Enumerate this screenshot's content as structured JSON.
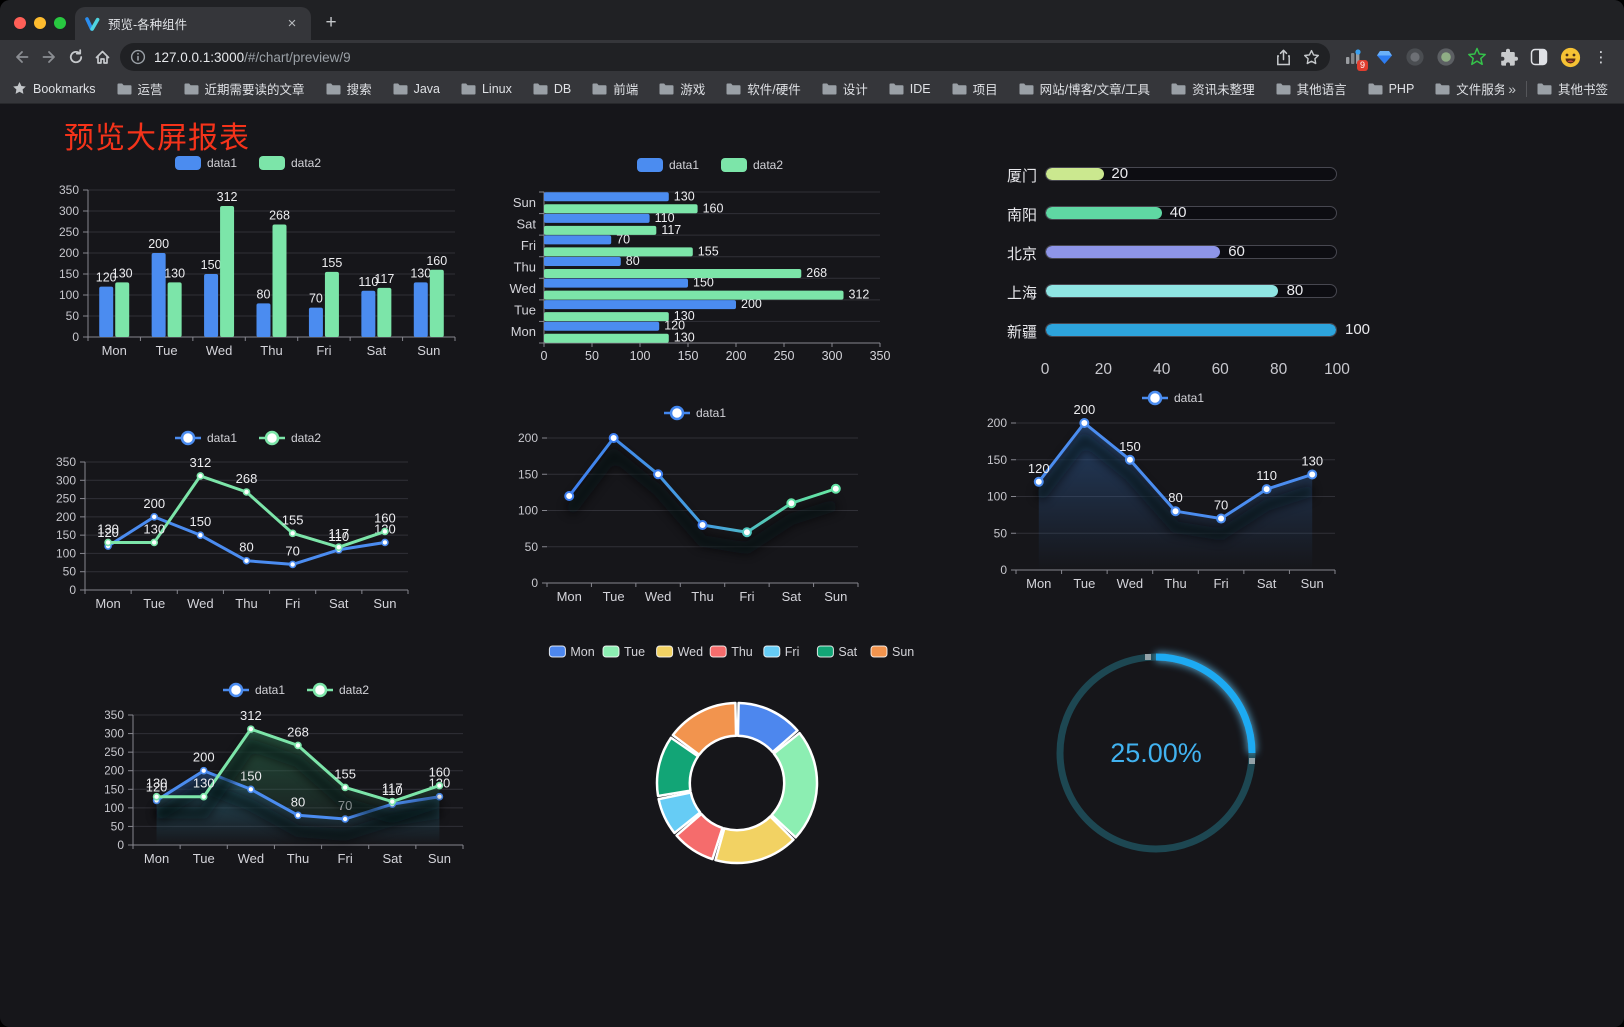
{
  "browser": {
    "tab_title": "预览-各种组件",
    "url_host": "127.0.0.1:3000",
    "url_path": "/#/chart/preview/9",
    "bookmarks_label": "Bookmarks",
    "bookmarks": [
      "运营",
      "近期需要读的文章",
      "搜索",
      "Java",
      "Linux",
      "DB",
      "前端",
      "游戏",
      "软件/硬件",
      "设计",
      "IDE",
      "项目",
      "网站/博客/文章/工具",
      "资讯未整理",
      "其他语言",
      "PHP",
      "文件服务器"
    ],
    "overflow_chevron": "»",
    "other_bookmarks_label": "其他书签",
    "extension_badge": "9"
  },
  "icons": {
    "close_glyph": "×",
    "new_tab_glyph": "+",
    "menu_glyph": "⋮"
  },
  "page": {
    "title": "预览大屏报表",
    "title_color": "#f5331a"
  },
  "chart_data": [
    {
      "id": "grouped-bar",
      "type": "bar",
      "categories": [
        "Mon",
        "Tue",
        "Wed",
        "Thu",
        "Fri",
        "Sat",
        "Sun"
      ],
      "series": [
        {
          "name": "data1",
          "color": "#4b8cf0",
          "values": [
            120,
            200,
            150,
            80,
            70,
            110,
            130
          ]
        },
        {
          "name": "data2",
          "color": "#7ce5a9",
          "values": [
            130,
            130,
            312,
            268,
            155,
            117,
            160
          ]
        }
      ],
      "ylim": [
        0,
        350
      ],
      "yticks": [
        0,
        50,
        100,
        150,
        200,
        250,
        300,
        350
      ],
      "grid": true,
      "legend_position": "top",
      "value_labels": true
    },
    {
      "id": "horizontal-bar",
      "type": "bar-horizontal",
      "categories_top_to_bottom": [
        "Sun",
        "Sat",
        "Fri",
        "Thu",
        "Wed",
        "Tue",
        "Mon"
      ],
      "series": [
        {
          "name": "data1",
          "color": "#4b8cf0",
          "values": [
            120,
            200,
            150,
            80,
            70,
            110,
            130
          ]
        },
        {
          "name": "data2",
          "color": "#7ce5a9",
          "values": [
            130,
            130,
            312,
            268,
            155,
            117,
            160
          ]
        }
      ],
      "xlim": [
        0,
        350
      ],
      "xticks": [
        0,
        50,
        100,
        150,
        200,
        250,
        300,
        350
      ],
      "grid": true,
      "legend_position": "top",
      "value_labels": true
    },
    {
      "id": "progress-list",
      "type": "progress",
      "max": 100,
      "axis_ticks": [
        0,
        20,
        40,
        60,
        80,
        100
      ],
      "items": [
        {
          "label": "厦门",
          "value": 20,
          "color": "#cbe88f"
        },
        {
          "label": "南阳",
          "value": 40,
          "color": "#5fd7a3"
        },
        {
          "label": "北京",
          "value": 60,
          "color": "#8e95e8"
        },
        {
          "label": "上海",
          "value": 80,
          "color": "#8fe5e3"
        },
        {
          "label": "新疆",
          "value": 100,
          "color": "#2da4dc"
        }
      ]
    },
    {
      "id": "line-two-series",
      "type": "line",
      "categories": [
        "Mon",
        "Tue",
        "Wed",
        "Thu",
        "Fri",
        "Sat",
        "Sun"
      ],
      "series": [
        {
          "name": "data1",
          "color": "#4b8cf0",
          "values": [
            120,
            200,
            150,
            80,
            70,
            110,
            130
          ]
        },
        {
          "name": "data2",
          "color": "#7ce5a9",
          "values": [
            130,
            130,
            312,
            268,
            155,
            117,
            160
          ]
        }
      ],
      "ylim": [
        0,
        350
      ],
      "yticks": [
        0,
        50,
        100,
        150,
        200,
        250,
        300,
        350
      ],
      "value_labels": true,
      "legend_position": "top"
    },
    {
      "id": "line-gradient",
      "type": "line",
      "categories": [
        "Mon",
        "Tue",
        "Wed",
        "Thu",
        "Fri",
        "Sat",
        "Sun"
      ],
      "series": [
        {
          "name": "data1",
          "color": "#4286ee",
          "gradient": [
            "#3f80f2",
            "#46a2dc",
            "#57cfae",
            "#68e8a2"
          ],
          "values": [
            120,
            200,
            150,
            80,
            70,
            110,
            130
          ]
        }
      ],
      "ylim": [
        0,
        200
      ],
      "yticks": [
        0,
        50,
        100,
        150,
        200
      ],
      "value_labels": false,
      "legend_position": "top"
    },
    {
      "id": "area-single",
      "type": "area",
      "categories": [
        "Mon",
        "Tue",
        "Wed",
        "Thu",
        "Fri",
        "Sat",
        "Sun"
      ],
      "series": [
        {
          "name": "data1",
          "color": "#4b8df0",
          "area_color": "#2f5f9e",
          "values": [
            120,
            200,
            150,
            80,
            70,
            110,
            130
          ]
        }
      ],
      "ylim": [
        0,
        200
      ],
      "yticks": [
        0,
        50,
        100,
        150,
        200
      ],
      "value_labels": true,
      "legend_position": "top"
    },
    {
      "id": "area-two-series",
      "type": "area",
      "categories": [
        "Mon",
        "Tue",
        "Wed",
        "Thu",
        "Fri",
        "Sat",
        "Sun"
      ],
      "series": [
        {
          "name": "data1",
          "color": "#4b8cf0",
          "area_color": "#2c5d9e",
          "values": [
            120,
            200,
            150,
            80,
            70,
            110,
            130
          ]
        },
        {
          "name": "data2",
          "color": "#7ce5a9",
          "area_color": "#2f7a55",
          "values": [
            130,
            130,
            312,
            268,
            155,
            117,
            160
          ]
        }
      ],
      "ylim": [
        0,
        350
      ],
      "yticks": [
        0,
        50,
        100,
        150,
        200,
        250,
        300,
        350
      ],
      "value_labels": true,
      "legend_position": "top"
    },
    {
      "id": "donut",
      "type": "pie",
      "inner_radius_ratio": 0.59,
      "border_color": "#ffffff",
      "items": [
        {
          "label": "Mon",
          "value": 120,
          "color": "#4d87ee"
        },
        {
          "label": "Tue",
          "value": 200,
          "color": "#8ceeb2"
        },
        {
          "label": "Wed",
          "value": 150,
          "color": "#f2d263"
        },
        {
          "label": "Thu",
          "value": 80,
          "color": "#f56c6c"
        },
        {
          "label": "Fri",
          "value": 70,
          "color": "#66ccf5"
        },
        {
          "label": "Sat",
          "value": 110,
          "color": "#12a576"
        },
        {
          "label": "Sun",
          "value": 130,
          "color": "#f2944e"
        }
      ],
      "legend_position": "top"
    },
    {
      "id": "gauge",
      "type": "gauge",
      "percent": 25,
      "label": "25.00%",
      "color": "#1daaf2",
      "track_color": "#1d4752",
      "text_color": "#41b2f0"
    }
  ]
}
